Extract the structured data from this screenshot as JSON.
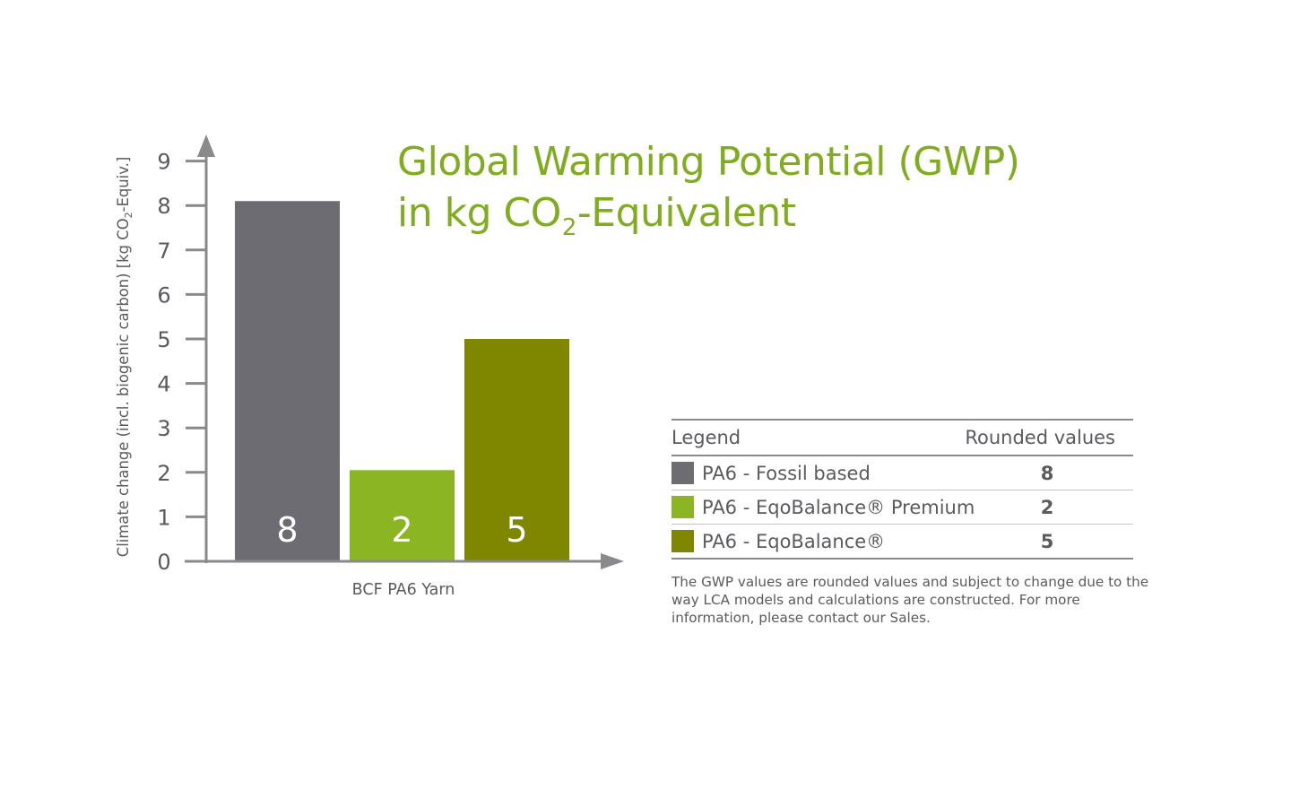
{
  "chart_data": {
    "type": "bar",
    "title_line1": "Global Warming Potential (GWP)",
    "title_line2_pre": "in kg CO",
    "title_line2_sub": "2",
    "title_line2_post": "-Equivalent",
    "ylabel_pre": "Climate change (incl. biogenic carbon) [kg CO",
    "ylabel_sub": "2",
    "ylabel_post": "-Equiv.]",
    "xlabel": "BCF PA6 Yarn",
    "ylim": [
      0,
      9
    ],
    "yticks": [
      0,
      1,
      2,
      3,
      4,
      5,
      6,
      7,
      8,
      9
    ],
    "series": [
      {
        "name": "PA6 - Fossil based",
        "value": 8.1,
        "label": "8",
        "color": "#6c6c72"
      },
      {
        "name": "PA6 - EqoBalance® Premium",
        "value": 2.05,
        "label": "2",
        "color": "#8bb523"
      },
      {
        "name": "PA6 - EqoBalance®",
        "value": 5.0,
        "label": "5",
        "color": "#7f8700"
      }
    ]
  },
  "legend": {
    "header_label": "Legend",
    "header_values": "Rounded values",
    "rows": [
      {
        "label": "PA6 - Fossil based",
        "value": "8",
        "color": "#6c6c72"
      },
      {
        "label": "PA6 - EqoBalance® Premium",
        "value": "2",
        "color": "#8bb523"
      },
      {
        "label": "PA6 - EqoBalance®",
        "value": "5",
        "color": "#7f8700"
      }
    ]
  },
  "note": "The GWP values are rounded values and subject to change due to the way LCA models and calculations are constructed. For more information, please contact our Sales.",
  "colors": {
    "axis": "#8a8a8e",
    "text": "#5a5a5f",
    "title": "#7fad1f"
  }
}
